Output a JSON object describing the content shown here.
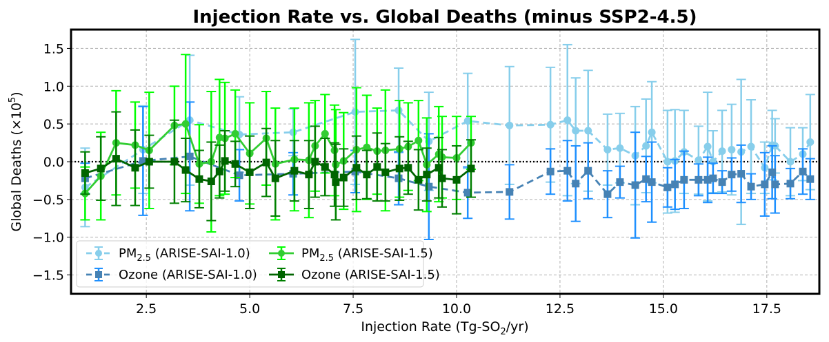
{
  "chart_data": {
    "type": "line",
    "title": "Injection Rate vs. Global Deaths (minus SSP2-4.5)",
    "xlabel": "Injection Rate (Tg-SO2/yr)",
    "xlabel_parts": {
      "pre": "Injection Rate (Tg-SO",
      "sub": "2",
      "post": "/yr)"
    },
    "ylabel": "Global Deaths (×10^5)",
    "ylabel_parts": {
      "pre": "Global Deaths (×10",
      "sup": "5",
      "post": ")"
    },
    "xlim": [
      0.68,
      18.77
    ],
    "ylim": [
      -1.75,
      1.75
    ],
    "xticks": [
      2.5,
      5.0,
      7.5,
      10.0,
      12.5,
      15.0,
      17.5
    ],
    "xtick_labels": [
      "2.5",
      "5.0",
      "7.5",
      "10.0",
      "12.5",
      "15.0",
      "17.5"
    ],
    "yticks": [
      1.5,
      1.0,
      0.5,
      0.0,
      -0.5,
      -1.0,
      -1.5
    ],
    "ytick_labels": [
      "1.5",
      "1.0",
      "0.5",
      "0.0",
      "−0.5",
      "−1.0",
      "−1.5"
    ],
    "grid": true,
    "reference_line": {
      "y": 0,
      "style": "dotted",
      "color": "#000000"
    },
    "legend": {
      "placement": "lower-left",
      "columns": 2,
      "entries": [
        {
          "label_pre": "PM",
          "label_sub": "2.5",
          "label_post": " (ARISE-SAI-1.0)",
          "series": 0
        },
        {
          "label_pre": "Ozone (ARISE-SAI-1.0)",
          "label_sub": "",
          "label_post": "",
          "series": 1
        },
        {
          "label_pre": "PM",
          "label_sub": "2.5",
          "label_post": " (ARISE-SAI-1.5)",
          "series": 2
        },
        {
          "label_pre": "Ozone (ARISE-SAI-1.5)",
          "label_sub": "",
          "label_post": "",
          "series": 3
        }
      ]
    },
    "series": [
      {
        "name": "PM2.5 (ARISE-SAI-1.0)",
        "line_color": "#87CEEB",
        "err_color": "#87CEEB",
        "marker": "circle",
        "dash": true,
        "x": [
          1.02,
          2.42,
          3.55,
          4.75,
          6.05,
          7.55,
          8.6,
          9.33,
          10.27,
          11.28,
          12.27,
          12.68,
          12.88,
          13.18,
          13.65,
          13.95,
          14.32,
          14.58,
          14.72,
          15.1,
          15.28,
          15.5,
          15.85,
          16.07,
          16.2,
          16.42,
          16.65,
          16.88,
          17.12,
          17.45,
          17.63,
          17.7,
          18.07,
          18.37,
          18.55
        ],
        "y": [
          -0.34,
          0.16,
          0.55,
          0.36,
          0.39,
          0.66,
          0.68,
          0.27,
          0.54,
          0.48,
          0.49,
          0.55,
          0.41,
          0.41,
          0.16,
          0.18,
          0.08,
          0.21,
          0.39,
          0.0,
          0.01,
          0.13,
          0.02,
          0.2,
          0.0,
          0.14,
          0.16,
          0.13,
          0.2,
          -0.08,
          0.22,
          0.21,
          0.0,
          0.1,
          0.26
        ],
        "err": [
          0.52,
          0.58,
          0.86,
          0.5,
          0.31,
          0.96,
          0.56,
          0.65,
          0.63,
          0.78,
          0.76,
          1.0,
          0.7,
          0.8,
          0.47,
          0.46,
          0.65,
          0.62,
          0.67,
          0.68,
          0.68,
          0.55,
          0.45,
          0.72,
          0.41,
          0.54,
          0.6,
          0.96,
          0.62,
          0.34,
          0.46,
          0.36,
          0.45,
          0.35,
          0.63
        ]
      },
      {
        "name": "Ozone (ARISE-SAI-1.0)",
        "line_color": "#4682B4",
        "err_color": "#1E90FF",
        "marker": "square",
        "dash": true,
        "x": [
          1.02,
          2.42,
          3.55,
          4.75,
          6.05,
          7.55,
          8.6,
          9.33,
          10.27,
          11.28,
          12.27,
          12.68,
          12.88,
          13.18,
          13.65,
          13.95,
          14.32,
          14.58,
          14.72,
          15.1,
          15.28,
          15.5,
          15.85,
          16.07,
          16.2,
          16.42,
          16.65,
          16.88,
          17.12,
          17.45,
          17.63,
          17.7,
          18.07,
          18.37,
          18.55
        ],
        "y": [
          -0.22,
          0.01,
          0.07,
          -0.18,
          -0.16,
          -0.13,
          -0.22,
          -0.33,
          -0.41,
          -0.4,
          -0.13,
          -0.12,
          -0.29,
          -0.12,
          -0.43,
          -0.27,
          -0.31,
          -0.23,
          -0.27,
          -0.34,
          -0.3,
          -0.24,
          -0.24,
          -0.24,
          -0.22,
          -0.27,
          -0.17,
          -0.16,
          -0.33,
          -0.3,
          -0.14,
          -0.3,
          -0.29,
          -0.13,
          -0.23
        ],
        "err": [
          0.2,
          0.72,
          0.72,
          0.34,
          0.28,
          0.28,
          0.35,
          0.7,
          0.34,
          0.36,
          0.3,
          0.4,
          0.5,
          0.37,
          0.31,
          0.21,
          0.7,
          0.3,
          0.53,
          0.26,
          0.33,
          0.38,
          0.21,
          0.3,
          0.2,
          0.15,
          0.22,
          0.38,
          0.17,
          0.42,
          0.35,
          0.38,
          0.2,
          0.3,
          0.27
        ]
      },
      {
        "name": "PM2.5 (ARISE-SAI-1.5)",
        "line_color": "#32CD32",
        "err_color": "#00FF00",
        "marker": "circle",
        "dash": false,
        "x": [
          1.02,
          1.4,
          1.77,
          2.23,
          2.57,
          3.18,
          3.45,
          3.78,
          4.07,
          4.27,
          4.4,
          4.65,
          5.0,
          5.4,
          5.62,
          6.08,
          6.43,
          6.58,
          6.82,
          7.05,
          7.08,
          7.27,
          7.58,
          7.83,
          8.08,
          8.28,
          8.62,
          8.83,
          9.08,
          9.28,
          9.57,
          9.65,
          10.0,
          10.35
        ],
        "y": [
          -0.42,
          -0.19,
          0.25,
          0.22,
          0.15,
          0.48,
          0.5,
          -0.03,
          0.0,
          0.32,
          0.31,
          0.37,
          0.11,
          0.31,
          -0.03,
          0.03,
          0.02,
          0.21,
          0.37,
          0.15,
          -0.04,
          0.01,
          0.16,
          0.19,
          0.14,
          0.15,
          0.17,
          0.2,
          0.28,
          -0.04,
          0.1,
          0.06,
          0.05,
          0.25
        ],
        "err": [
          0.35,
          0.58,
          0.69,
          0.57,
          0.77,
          0.52,
          0.92,
          0.52,
          0.93,
          0.77,
          0.74,
          0.58,
          0.67,
          0.62,
          0.74,
          0.68,
          0.76,
          0.6,
          0.52,
          0.6,
          0.73,
          0.64,
          0.82,
          0.69,
          0.57,
          0.8,
          0.64,
          0.58,
          0.53,
          0.62,
          0.63,
          0.54,
          0.55,
          0.35
        ]
      },
      {
        "name": "Ozone (ARISE-SAI-1.5)",
        "line_color": "#006400",
        "err_color": "#007F00",
        "marker": "square",
        "dash": false,
        "x": [
          1.02,
          1.4,
          1.77,
          2.23,
          2.57,
          3.18,
          3.45,
          3.78,
          4.07,
          4.27,
          4.4,
          4.65,
          5.0,
          5.4,
          5.62,
          6.08,
          6.43,
          6.58,
          6.82,
          7.05,
          7.08,
          7.27,
          7.58,
          7.83,
          8.08,
          8.28,
          8.62,
          8.83,
          9.08,
          9.28,
          9.57,
          9.65,
          10.0,
          10.35
        ],
        "y": [
          -0.15,
          -0.09,
          0.04,
          -0.08,
          0.0,
          0.0,
          -0.11,
          -0.23,
          -0.26,
          -0.13,
          0.01,
          -0.03,
          -0.14,
          -0.01,
          -0.22,
          -0.12,
          -0.17,
          0.0,
          -0.07,
          -0.17,
          -0.27,
          -0.21,
          -0.08,
          -0.17,
          -0.07,
          -0.14,
          -0.09,
          -0.08,
          -0.24,
          -0.17,
          -0.08,
          -0.22,
          -0.24,
          -0.09
        ],
        "err": [
          0.28,
          0.42,
          0.62,
          0.5,
          0.35,
          0.55,
          0.42,
          0.38,
          0.52,
          0.35,
          0.4,
          0.3,
          0.48,
          0.45,
          0.5,
          0.4,
          0.45,
          0.47,
          0.38,
          0.42,
          0.5,
          0.38,
          0.42,
          0.32,
          0.45,
          0.38,
          0.42,
          0.35,
          0.4,
          0.35,
          0.4,
          0.38,
          0.45,
          0.38
        ]
      }
    ]
  }
}
